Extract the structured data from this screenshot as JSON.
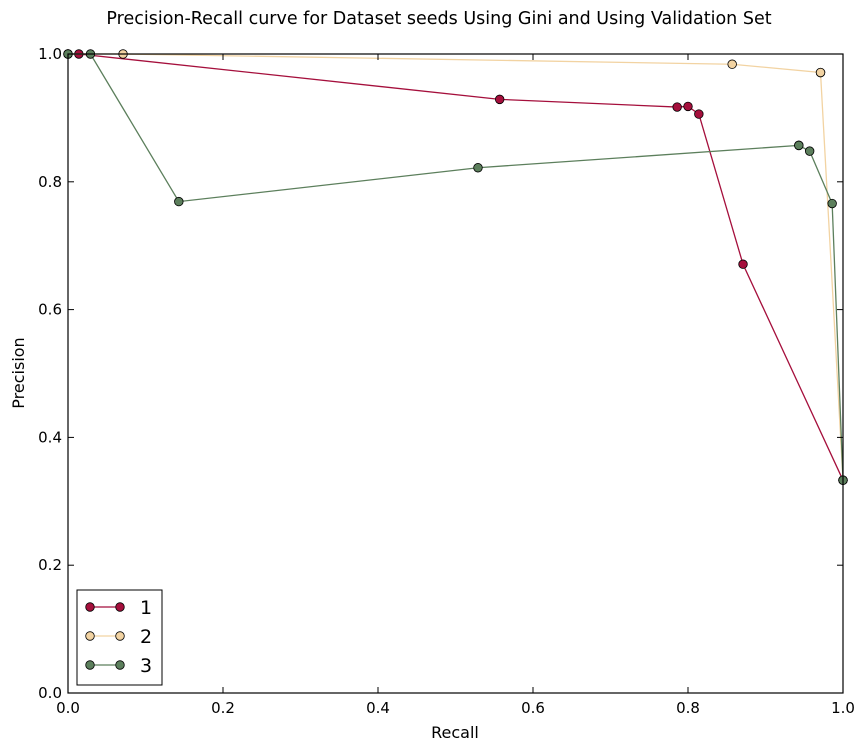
{
  "chart_data": {
    "type": "line",
    "title": "Precision-Recall curve for Dataset seeds Using Gini and Using Validation Set",
    "xlabel": "Recall",
    "ylabel": "Precision",
    "xlim": [
      0.0,
      1.0
    ],
    "ylim": [
      0.0,
      1.0
    ],
    "xticks": [
      "0.0",
      "0.2",
      "0.4",
      "0.6",
      "0.8",
      "1.0"
    ],
    "yticks": [
      "0.0",
      "0.2",
      "0.4",
      "0.6",
      "0.8",
      "1.0"
    ],
    "grid": false,
    "legend_position": "lower-left",
    "series": [
      {
        "name": "1",
        "color": "#a50f3c",
        "points": [
          [
            0.0,
            1.0
          ],
          [
            0.014,
            1.0
          ],
          [
            0.557,
            0.929
          ],
          [
            0.786,
            0.917
          ],
          [
            0.8,
            0.918
          ],
          [
            0.814,
            0.906
          ],
          [
            0.871,
            0.671
          ],
          [
            1.0,
            0.333
          ]
        ]
      },
      {
        "name": "2",
        "color": "#f2d3a2",
        "points": [
          [
            0.0,
            1.0
          ],
          [
            0.071,
            1.0
          ],
          [
            0.857,
            0.984
          ],
          [
            0.971,
            0.971
          ],
          [
            0.971,
            0.971
          ],
          [
            1.0,
            0.333
          ]
        ]
      },
      {
        "name": "3",
        "color": "#5c7f5c",
        "points": [
          [
            0.0,
            1.0
          ],
          [
            0.029,
            1.0
          ],
          [
            0.143,
            0.769
          ],
          [
            0.529,
            0.822
          ],
          [
            0.943,
            0.857
          ],
          [
            0.943,
            0.857
          ],
          [
            0.957,
            0.848
          ],
          [
            0.986,
            0.766
          ],
          [
            1.0,
            0.333
          ]
        ]
      }
    ]
  }
}
